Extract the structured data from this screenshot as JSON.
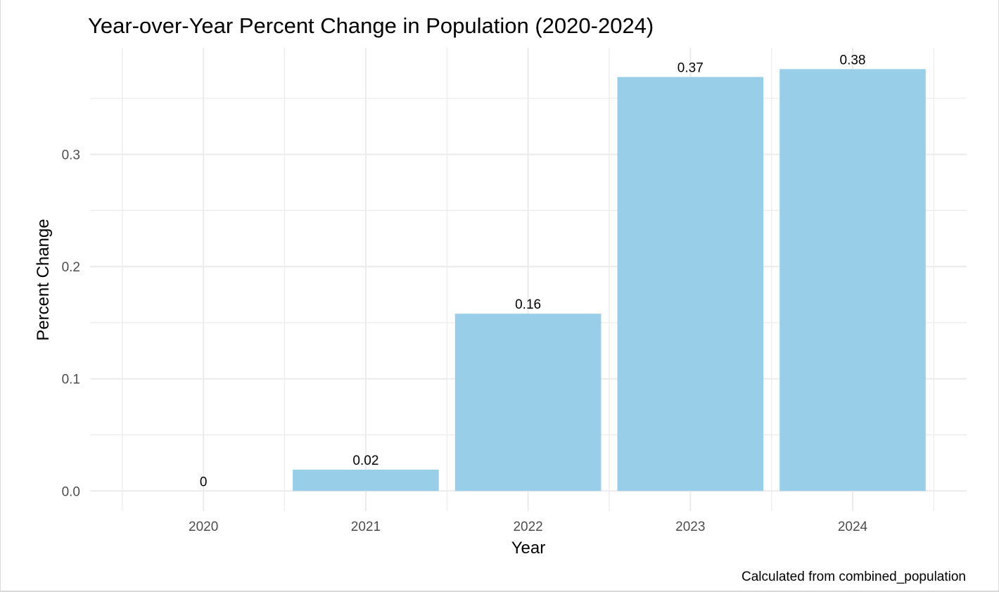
{
  "chart_data": {
    "type": "bar",
    "title": "Year-over-Year Percent Change in Population (2020-2024)",
    "xlabel": "Year",
    "ylabel": "Percent Change",
    "caption": "Calculated from combined_population",
    "categories": [
      "2020",
      "2021",
      "2022",
      "2023",
      "2024"
    ],
    "values": [
      0,
      0.019,
      0.158,
      0.369,
      0.376
    ],
    "data_labels": [
      "0",
      "0.02",
      "0.16",
      "0.37",
      "0.38"
    ],
    "ylim": [
      -0.018,
      0.395
    ],
    "yticks": [
      0.0,
      0.1,
      0.2,
      0.3
    ],
    "ytick_labels": [
      "0.0",
      "0.1",
      "0.2",
      "0.3"
    ],
    "grid": true,
    "legend": "none",
    "bar_color": "#99CEE8",
    "background": "#FFFFFF",
    "grid_color": "#EBEBEB"
  }
}
